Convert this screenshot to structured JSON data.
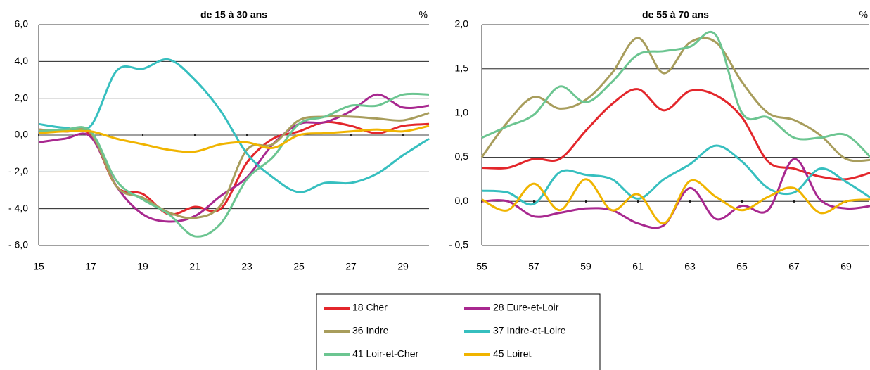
{
  "chart_data": [
    {
      "type": "line",
      "title": "de 15 à 30 ans",
      "unit": "%",
      "x": [
        15,
        16,
        17,
        18,
        19,
        20,
        21,
        22,
        23,
        24,
        25,
        26,
        27,
        28,
        29,
        30
      ],
      "xlim": [
        15,
        30
      ],
      "xticks": [
        15,
        17,
        19,
        21,
        23,
        25,
        27,
        29
      ],
      "ylim": [
        -6,
        6
      ],
      "yticks": [
        {
          "value": 6,
          "label": "6,0"
        },
        {
          "value": 4,
          "label": "4,0"
        },
        {
          "value": 2,
          "label": "2,0"
        },
        {
          "value": 0,
          "label": "0,0"
        },
        {
          "value": -2,
          "label": "- 2,0"
        },
        {
          "value": -4,
          "label": "- 4,0"
        },
        {
          "value": -6,
          "label": "- 6,0"
        }
      ],
      "grid": true,
      "series": [
        {
          "name": "18 Cher",
          "color": "#e3262b",
          "values": [
            0.3,
            0.2,
            0.0,
            -2.8,
            -3.2,
            -4.3,
            -3.9,
            -4.0,
            -1.5,
            -0.2,
            0.2,
            0.7,
            0.5,
            0.1,
            0.5,
            0.6
          ]
        },
        {
          "name": "28 Eure-et-Loir",
          "color": "#a8288f",
          "values": [
            -0.4,
            -0.2,
            -0.1,
            -2.8,
            -4.3,
            -4.7,
            -4.4,
            -3.3,
            -2.3,
            -0.5,
            0.6,
            0.7,
            1.3,
            2.2,
            1.5,
            1.6
          ]
        },
        {
          "name": "36 Indre",
          "color": "#a89d5c",
          "values": [
            0.3,
            0.2,
            0.1,
            -2.8,
            -3.4,
            -4.2,
            -4.5,
            -3.8,
            -0.8,
            -0.5,
            0.8,
            1.0,
            1.0,
            0.9,
            0.8,
            1.2
          ]
        },
        {
          "name": "37 Indre-et-Loire",
          "color": "#36bfbf",
          "values": [
            0.6,
            0.4,
            0.5,
            3.5,
            3.6,
            4.1,
            3.0,
            1.3,
            -1.0,
            -2.3,
            -3.1,
            -2.6,
            -2.6,
            -2.1,
            -1.1,
            -0.2
          ]
        },
        {
          "name": "41 Loir-et-Cher",
          "color": "#6cc591",
          "values": [
            0.2,
            0.3,
            0.2,
            -2.5,
            -3.5,
            -4.3,
            -5.5,
            -4.8,
            -2.4,
            -1.2,
            0.6,
            1.0,
            1.6,
            1.6,
            2.2,
            2.2
          ]
        },
        {
          "name": "45 Loiret",
          "color": "#f0b400",
          "values": [
            0.1,
            0.2,
            0.2,
            -0.2,
            -0.5,
            -0.8,
            -0.9,
            -0.5,
            -0.4,
            -0.7,
            0.0,
            0.1,
            0.2,
            0.3,
            0.2,
            0.5
          ]
        }
      ]
    },
    {
      "type": "line",
      "title": "de 55 à 70 ans",
      "unit": "%",
      "x": [
        55,
        56,
        57,
        58,
        59,
        60,
        61,
        62,
        63,
        64,
        65,
        66,
        67,
        68,
        69,
        70
      ],
      "xlim": [
        55,
        70
      ],
      "xticks": [
        55,
        57,
        59,
        61,
        63,
        65,
        67,
        69
      ],
      "ylim": [
        -0.5,
        2
      ],
      "yticks": [
        {
          "value": 2,
          "label": "2,0"
        },
        {
          "value": 1.5,
          "label": "1,5"
        },
        {
          "value": 1,
          "label": "1,0"
        },
        {
          "value": 0.5,
          "label": "0,5"
        },
        {
          "value": 0,
          "label": "0,0"
        },
        {
          "value": -0.5,
          "label": "- 0,5"
        }
      ],
      "grid": true,
      "series": [
        {
          "name": "18 Cher",
          "color": "#e3262b",
          "values": [
            0.38,
            0.38,
            0.48,
            0.48,
            0.8,
            1.1,
            1.27,
            1.03,
            1.25,
            1.2,
            0.95,
            0.45,
            0.37,
            0.28,
            0.25,
            0.33
          ]
        },
        {
          "name": "28 Eure-et-Loir",
          "color": "#a8288f",
          "values": [
            0.0,
            0.0,
            -0.17,
            -0.13,
            -0.08,
            -0.1,
            -0.25,
            -0.27,
            0.15,
            -0.2,
            -0.05,
            -0.1,
            0.48,
            0.02,
            -0.08,
            -0.05
          ]
        },
        {
          "name": "36 Indre",
          "color": "#a89d5c",
          "values": [
            0.5,
            0.9,
            1.18,
            1.05,
            1.15,
            1.45,
            1.85,
            1.45,
            1.8,
            1.8,
            1.35,
            1.0,
            0.92,
            0.75,
            0.48,
            0.47
          ]
        },
        {
          "name": "37 Indre-et-Loire",
          "color": "#36bfbf",
          "values": [
            0.12,
            0.1,
            -0.03,
            0.33,
            0.3,
            0.25,
            0.03,
            0.25,
            0.42,
            0.63,
            0.45,
            0.15,
            0.1,
            0.37,
            0.22,
            0.03
          ]
        },
        {
          "name": "41 Loir-et-Cher",
          "color": "#6cc591",
          "values": [
            0.72,
            0.85,
            0.98,
            1.3,
            1.12,
            1.35,
            1.66,
            1.7,
            1.75,
            1.88,
            1.0,
            0.95,
            0.72,
            0.72,
            0.75,
            0.48
          ]
        },
        {
          "name": "45 Loiret",
          "color": "#f0b400",
          "values": [
            0.02,
            -0.1,
            0.2,
            -0.1,
            0.25,
            -0.1,
            0.08,
            -0.25,
            0.23,
            0.05,
            -0.1,
            0.05,
            0.15,
            -0.13,
            0.0,
            0.02
          ]
        }
      ]
    }
  ]
}
